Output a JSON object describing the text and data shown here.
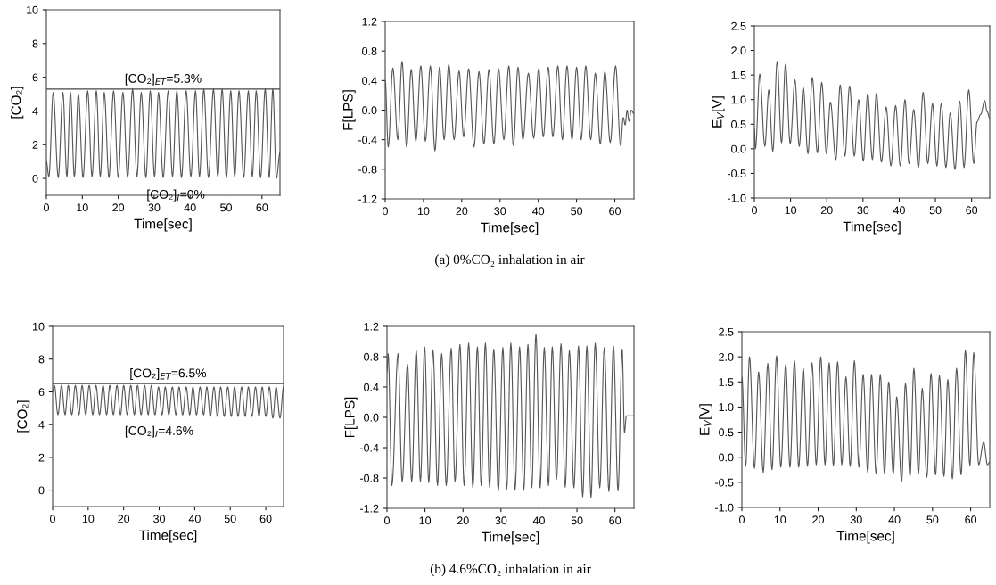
{
  "chart_data": [
    {
      "type": "line",
      "xlabel": "Time[sec]",
      "ylabel": "[CO₂]",
      "xlim": [
        0,
        65
      ],
      "xticks": [
        0,
        10,
        20,
        30,
        40,
        50,
        60
      ],
      "ylim": [
        -1,
        10
      ],
      "yticks": [
        0,
        2,
        4,
        6,
        8,
        10
      ],
      "ref_lines": [
        {
          "axis": "y",
          "value": 5.3,
          "label": "[CO₂]$_{ET}$=5.3%",
          "color": "#444444"
        }
      ],
      "annotations": [
        {
          "text": "[CO₂]$_{I}$=0%",
          "x": 36,
          "y": 0
        }
      ],
      "series": [
        {
          "color": "#555555",
          "x": [
            0,
            0.7,
            1.9,
            3.3,
            4.6,
            5.7,
            6.7,
            7.8,
            8.9,
            10.2,
            11.5,
            12.7,
            13.9,
            15.0,
            16.1,
            17.4,
            18.7,
            20.0,
            21.3,
            22.6,
            24.0,
            25.2,
            26.4,
            27.7,
            28.9,
            30.1,
            31.2,
            32.5,
            33.9,
            35.1,
            36.3,
            37.6,
            38.9,
            40.2,
            41.5,
            42.6,
            43.8,
            45.1,
            46.5,
            47.7,
            48.9,
            50.1,
            51.3,
            52.4,
            53.6,
            54.9,
            56.2,
            57.3,
            58.4,
            59.6,
            60.9,
            62.0,
            63.0,
            64.0,
            65
          ],
          "values": [
            1.0,
            0.1,
            5.1,
            0.05,
            5.1,
            0.1,
            5.1,
            0.1,
            5.0,
            0.05,
            5.2,
            0.1,
            5.2,
            0.1,
            5.1,
            0.05,
            5.2,
            0.05,
            5.1,
            0.05,
            5.3,
            0.1,
            5.1,
            0.05,
            5.2,
            0.1,
            5.1,
            0.05,
            5.2,
            0.1,
            5.2,
            0.05,
            5.2,
            0.1,
            5.2,
            0.1,
            5.3,
            0.05,
            5.3,
            0.1,
            5.3,
            0.05,
            5.2,
            0.1,
            5.2,
            0.05,
            5.2,
            0.1,
            5.2,
            0.05,
            5.3,
            0.05,
            5.3,
            0.0,
            1.5
          ]
        }
      ]
    },
    {
      "type": "line",
      "xlabel": "Time[sec]",
      "ylabel": "F[LPS]",
      "xlim": [
        0,
        65
      ],
      "xticks": [
        0,
        10,
        20,
        30,
        40,
        50,
        60
      ],
      "ylim": [
        -1.2,
        1.2
      ],
      "yticks": [
        -1.2,
        -0.8,
        -0.4,
        {
          "value": 0,
          "label": "0.0"
        },
        0.4,
        0.8,
        1.2
      ],
      "annotations": [
        "(a) 0%CO₂ inhalation in air"
      ],
      "series": [
        {
          "color": "#555555",
          "x": [
            0,
            0.8,
            2.0,
            3.3,
            4.4,
            5.6,
            6.8,
            8.0,
            9.3,
            10.5,
            11.8,
            13.0,
            14.2,
            15.4,
            16.6,
            18.0,
            19.3,
            20.5,
            21.8,
            23.2,
            24.5,
            25.8,
            27.1,
            28.4,
            29.6,
            31.0,
            32.3,
            33.5,
            34.7,
            36.0,
            37.4,
            38.8,
            40.1,
            41.3,
            42.6,
            43.8,
            45.1,
            46.3,
            47.5,
            48.8,
            50.0,
            51.2,
            52.4,
            53.7,
            54.9,
            56.2,
            57.4,
            58.8,
            60.2,
            61.5,
            62.2,
            62.7,
            63.2,
            63.7,
            64.3,
            65
          ],
          "values": [
            0.4,
            -0.5,
            0.57,
            -0.4,
            0.66,
            -0.5,
            0.55,
            -0.42,
            0.6,
            -0.42,
            0.6,
            -0.55,
            0.58,
            -0.4,
            0.62,
            -0.4,
            0.53,
            -0.36,
            0.56,
            -0.5,
            0.52,
            -0.46,
            0.55,
            -0.46,
            0.56,
            -0.4,
            0.6,
            -0.48,
            0.58,
            -0.4,
            0.5,
            -0.38,
            0.56,
            -0.36,
            0.58,
            -0.36,
            0.6,
            -0.4,
            0.6,
            -0.4,
            0.58,
            -0.4,
            0.6,
            -0.4,
            0.5,
            -0.46,
            0.52,
            -0.44,
            0.6,
            -0.48,
            -0.1,
            -0.2,
            0.0,
            -0.15,
            0.0,
            -0.05
          ]
        }
      ]
    },
    {
      "type": "line",
      "xlabel": "Time[sec]",
      "ylabel": "E$_{V}$[V]",
      "xlim": [
        0,
        65
      ],
      "xticks": [
        0,
        10,
        20,
        30,
        40,
        50,
        60
      ],
      "ylim": [
        -1.0,
        2.5
      ],
      "yticks": [
        {
          "value": -1,
          "label": "-1.0"
        },
        -0.5,
        {
          "value": 0,
          "label": "0.0"
        },
        0.5,
        {
          "value": 1,
          "label": "1.0"
        },
        1.5,
        {
          "value": 2,
          "label": "2.0"
        },
        2.5
      ],
      "series": [
        {
          "color": "#555555",
          "x": [
            0,
            0.3,
            1.5,
            2.9,
            4.0,
            5.1,
            6.3,
            7.5,
            8.6,
            9.9,
            11.2,
            12.4,
            13.5,
            14.8,
            16.0,
            17.4,
            18.6,
            19.9,
            21.0,
            22.5,
            23.7,
            25.0,
            26.3,
            27.6,
            28.8,
            30.1,
            31.3,
            32.6,
            33.7,
            35.1,
            36.4,
            37.7,
            39.0,
            40.3,
            41.6,
            42.7,
            44.0,
            45.3,
            46.6,
            47.9,
            49.2,
            50.4,
            51.6,
            52.9,
            54.1,
            55.4,
            56.7,
            57.9,
            59.2,
            60.6,
            61.5,
            62.5,
            63.6,
            64.3,
            65
          ],
          "values": [
            0.4,
            0.0,
            1.52,
            0.05,
            1.2,
            -0.05,
            1.78,
            0.12,
            1.72,
            0.1,
            1.4,
            0.05,
            1.25,
            -0.1,
            1.45,
            -0.08,
            1.35,
            -0.1,
            0.95,
            -0.22,
            1.3,
            -0.15,
            1.28,
            -0.15,
            1.0,
            -0.25,
            1.12,
            -0.22,
            1.13,
            -0.27,
            0.85,
            -0.35,
            0.88,
            -0.35,
            1.0,
            -0.3,
            0.8,
            -0.38,
            1.15,
            -0.3,
            0.92,
            -0.35,
            0.92,
            -0.38,
            0.73,
            -0.42,
            0.97,
            -0.38,
            1.2,
            -0.3,
            0.55,
            0.7,
            0.98,
            0.75,
            0.62
          ]
        }
      ]
    },
    {
      "type": "line",
      "xlabel": "Time[sec]",
      "ylabel": "[CO₂]",
      "xlim": [
        0,
        65
      ],
      "xticks": [
        0,
        10,
        20,
        30,
        40,
        50,
        60
      ],
      "ylim": [
        -1,
        10
      ],
      "yticks": [
        0,
        2,
        4,
        6,
        8,
        10
      ],
      "ref_lines": [
        {
          "axis": "y",
          "value": 6.5,
          "label": "[CO₂]$_{ET}$=6.5%",
          "color": "#444444"
        }
      ],
      "annotations": [
        {
          "text": "[CO₂]$_{I}$=4.6%",
          "x": 30,
          "y": 4.6
        }
      ],
      "series": [
        {
          "color": "#555555",
          "x": [
            0,
            0.5,
            1.5,
            2.5,
            3.5,
            4.4,
            5.4,
            6.4,
            7.4,
            8.3,
            9.3,
            10.3,
            11.3,
            12.2,
            13.2,
            14.2,
            15.2,
            16.1,
            17.1,
            18.1,
            19.1,
            20.0,
            21.0,
            22.0,
            23.0,
            23.9,
            24.9,
            25.9,
            26.9,
            27.8,
            28.8,
            29.8,
            30.8,
            31.7,
            32.7,
            33.7,
            34.7,
            35.6,
            36.6,
            37.6,
            38.6,
            39.5,
            40.5,
            41.5,
            42.5,
            43.4,
            44.4,
            45.4,
            46.4,
            47.3,
            48.3,
            49.3,
            50.3,
            51.2,
            52.2,
            53.2,
            54.2,
            55.1,
            56.1,
            57.1,
            58.1,
            59.0,
            60.0,
            61.0,
            62.0,
            62.9,
            64.0,
            65
          ],
          "values": [
            6.0,
            6.4,
            4.6,
            6.4,
            4.6,
            6.4,
            4.6,
            6.4,
            4.6,
            6.4,
            4.6,
            6.4,
            4.6,
            6.4,
            4.6,
            6.4,
            4.6,
            6.4,
            4.6,
            6.4,
            4.6,
            6.4,
            4.6,
            6.4,
            4.6,
            6.4,
            4.6,
            6.4,
            4.6,
            6.4,
            4.6,
            6.3,
            4.6,
            6.3,
            4.6,
            6.3,
            4.6,
            6.3,
            4.6,
            6.3,
            4.6,
            6.3,
            4.6,
            6.3,
            4.6,
            6.3,
            4.5,
            6.3,
            4.5,
            6.3,
            4.5,
            6.3,
            4.5,
            6.3,
            4.5,
            6.3,
            4.5,
            6.3,
            4.5,
            6.3,
            4.5,
            6.3,
            4.5,
            6.3,
            4.4,
            6.3,
            4.4,
            6.3
          ]
        }
      ]
    },
    {
      "type": "line",
      "xlabel": "Time[sec]",
      "ylabel": "F[LPS]",
      "xlim": [
        0,
        65
      ],
      "xticks": [
        0,
        10,
        20,
        30,
        40,
        50,
        60
      ],
      "ylim": [
        -1.2,
        1.2
      ],
      "yticks": [
        -1.2,
        -0.8,
        -0.4,
        {
          "value": 0,
          "label": "0.0"
        },
        0.4,
        0.8,
        1.2
      ],
      "annotations": [
        "(b) 4.6%CO₂ inhalation in air"
      ],
      "series": [
        {
          "color": "#555555",
          "x": [
            0,
            0.3,
            1.3,
            2.9,
            4.0,
            5.4,
            6.5,
            7.7,
            8.8,
            9.9,
            11.0,
            12.1,
            13.3,
            14.4,
            15.6,
            16.9,
            17.9,
            19.2,
            20.3,
            21.5,
            22.6,
            23.8,
            24.8,
            25.9,
            27.0,
            28.1,
            29.3,
            30.5,
            31.5,
            32.6,
            33.7,
            34.9,
            36.0,
            37.1,
            38.1,
            39.2,
            40.3,
            41.4,
            42.5,
            43.5,
            44.6,
            45.8,
            46.9,
            48.0,
            49.2,
            50.4,
            51.5,
            52.6,
            53.7,
            54.8,
            56.0,
            57.2,
            58.4,
            59.6,
            60.8,
            61.9,
            62.5,
            63.0,
            65
          ],
          "values": [
            0.6,
            0.84,
            -0.9,
            0.84,
            -0.85,
            0.7,
            -0.85,
            0.88,
            -0.85,
            0.93,
            -0.86,
            0.89,
            -0.9,
            0.84,
            -0.9,
            0.91,
            -0.85,
            0.96,
            -0.9,
            0.98,
            -0.93,
            0.93,
            -0.9,
            0.98,
            -0.92,
            0.9,
            -0.97,
            0.92,
            -0.95,
            0.98,
            -0.96,
            0.93,
            -0.96,
            0.96,
            -0.93,
            1.1,
            -0.93,
            0.92,
            -0.9,
            0.93,
            -0.82,
            0.97,
            -0.92,
            0.88,
            -0.93,
            0.94,
            -1.05,
            0.94,
            -1.06,
            0.98,
            -0.93,
            0.92,
            -0.98,
            0.94,
            -0.97,
            0.9,
            -0.2,
            0.02,
            0.02
          ]
        }
      ]
    },
    {
      "type": "line",
      "xlabel": "Time[sec]",
      "ylabel": "E$_{V}$[V]",
      "xlim": [
        0,
        65
      ],
      "xticks": [
        0,
        10,
        20,
        30,
        40,
        50,
        60
      ],
      "ylim": [
        -1.0,
        2.5
      ],
      "yticks": [
        {
          "value": -1,
          "label": "-1.0"
        },
        -0.5,
        {
          "value": 0,
          "label": "0.0"
        },
        0.5,
        {
          "value": 1,
          "label": "1.0"
        },
        1.5,
        {
          "value": 2,
          "label": "2.0"
        },
        2.5
      ],
      "series": [
        {
          "color": "#555555",
          "x": [
            0,
            1.0,
            2.0,
            3.3,
            4.4,
            5.6,
            6.8,
            7.9,
            9.1,
            10.2,
            11.5,
            12.6,
            13.8,
            14.9,
            16.1,
            17.2,
            18.4,
            19.5,
            20.7,
            21.8,
            22.9,
            24.0,
            25.1,
            26.2,
            27.3,
            28.4,
            29.5,
            30.7,
            31.8,
            33.0,
            34.0,
            35.2,
            36.3,
            37.4,
            38.5,
            39.7,
            40.6,
            41.9,
            42.9,
            44.1,
            45.1,
            46.3,
            47.3,
            48.5,
            49.6,
            50.8,
            51.8,
            53.0,
            54.0,
            55.2,
            56.3,
            57.5,
            58.6,
            59.8,
            60.8,
            62.1,
            63.4,
            64.4,
            65
          ],
          "values": [
            1.6,
            -0.18,
            2.0,
            -0.22,
            1.7,
            -0.3,
            1.87,
            -0.25,
            2.02,
            -0.2,
            1.85,
            -0.2,
            1.92,
            -0.2,
            1.77,
            -0.18,
            1.88,
            -0.15,
            2.0,
            -0.15,
            1.88,
            -0.17,
            1.9,
            -0.15,
            1.6,
            -0.18,
            1.92,
            -0.2,
            1.65,
            -0.3,
            1.65,
            -0.33,
            1.65,
            -0.33,
            1.5,
            -0.33,
            1.2,
            -0.48,
            1.47,
            -0.38,
            1.77,
            -0.33,
            1.37,
            -0.4,
            1.67,
            -0.35,
            1.63,
            -0.38,
            1.55,
            -0.43,
            1.77,
            -0.35,
            2.13,
            -0.17,
            2.08,
            -0.15,
            0.3,
            -0.15,
            -0.1
          ]
        }
      ]
    }
  ]
}
